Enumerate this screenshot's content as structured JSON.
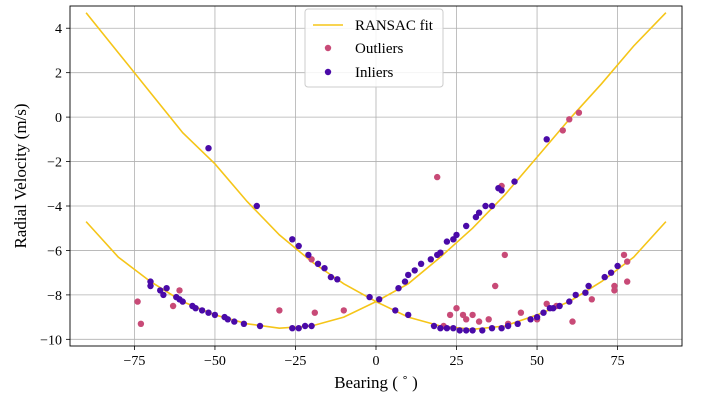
{
  "chart_data": {
    "type": "scatter",
    "xlabel": "Bearing ( ˚ )",
    "ylabel": "Radial Velocity (m/s)",
    "xlim": [
      -95,
      95
    ],
    "ylim": [
      -10.3,
      5.0
    ],
    "xticks": [
      -75,
      -50,
      -25,
      0,
      25,
      50,
      75
    ],
    "yticks": [
      -10,
      -8,
      -6,
      -4,
      -2,
      0,
      2,
      4
    ],
    "grid": true,
    "legend_position": "top-center",
    "legend": [
      "RANSAC fit",
      "Outliers",
      "Inliers"
    ],
    "colors": {
      "fit": "#f5c518",
      "outliers": "#c84a77",
      "inliers": "#4a0aa8",
      "grid": "#b0b0b0"
    },
    "fit_curves": [
      {
        "name": "RANSAC fit",
        "points": [
          [
            -90,
            4.7
          ],
          [
            -80,
            2.9
          ],
          [
            -70,
            1.1
          ],
          [
            -60,
            -0.7
          ],
          [
            -50,
            -2.1
          ],
          [
            -40,
            -3.8
          ],
          [
            -30,
            -5.3
          ],
          [
            -20,
            -6.5
          ],
          [
            -10,
            -7.5
          ],
          [
            0,
            -8.3
          ],
          [
            10,
            -7.5
          ],
          [
            20,
            -6.3
          ],
          [
            30,
            -5.0
          ],
          [
            40,
            -3.5
          ],
          [
            50,
            -1.8
          ],
          [
            60,
            -0.1
          ],
          [
            70,
            1.5
          ],
          [
            80,
            3.2
          ],
          [
            90,
            4.7
          ]
        ]
      },
      {
        "points": [
          [
            -90,
            -4.7
          ],
          [
            -80,
            -6.3
          ],
          [
            -70,
            -7.4
          ],
          [
            -60,
            -8.3
          ],
          [
            -50,
            -8.9
          ],
          [
            -40,
            -9.3
          ],
          [
            -30,
            -9.5
          ],
          [
            -20,
            -9.4
          ],
          [
            -10,
            -9.0
          ],
          [
            0,
            -8.3
          ],
          [
            10,
            -9.0
          ],
          [
            20,
            -9.4
          ],
          [
            30,
            -9.55
          ],
          [
            40,
            -9.4
          ],
          [
            50,
            -8.9
          ],
          [
            60,
            -8.3
          ],
          [
            70,
            -7.4
          ],
          [
            80,
            -6.3
          ],
          [
            90,
            -4.7
          ]
        ]
      }
    ],
    "series": [
      {
        "name": "Outliers",
        "points": [
          [
            -74,
            -8.3
          ],
          [
            -73,
            -9.3
          ],
          [
            -63,
            -8.5
          ],
          [
            -61,
            -7.8
          ],
          [
            -30,
            -8.7
          ],
          [
            -20,
            -6.4
          ],
          [
            -19,
            -8.8
          ],
          [
            -10,
            -8.7
          ],
          [
            19,
            -2.7
          ],
          [
            21,
            -9.4
          ],
          [
            23,
            -8.9
          ],
          [
            25,
            -8.6
          ],
          [
            27,
            -8.9
          ],
          [
            28,
            -9.1
          ],
          [
            30,
            -8.9
          ],
          [
            32,
            -9.2
          ],
          [
            35,
            -9.1
          ],
          [
            37,
            -7.6
          ],
          [
            39,
            -3.1
          ],
          [
            40,
            -6.2
          ],
          [
            41,
            -9.3
          ],
          [
            45,
            -8.8
          ],
          [
            50,
            -9.1
          ],
          [
            53,
            -8.4
          ],
          [
            56,
            -8.5
          ],
          [
            58,
            -0.6
          ],
          [
            60,
            -0.1
          ],
          [
            61,
            -9.2
          ],
          [
            63,
            0.2
          ],
          [
            67,
            -8.2
          ],
          [
            74,
            -7.6
          ],
          [
            74,
            -7.8
          ],
          [
            77,
            -6.2
          ],
          [
            78,
            -7.4
          ],
          [
            78,
            -6.5
          ]
        ]
      },
      {
        "name": "Inliers",
        "points": [
          [
            -70,
            -7.4
          ],
          [
            -70,
            -7.6
          ],
          [
            -67,
            -7.8
          ],
          [
            -66,
            -8.0
          ],
          [
            -65,
            -7.7
          ],
          [
            -62,
            -8.1
          ],
          [
            -61,
            -8.2
          ],
          [
            -60,
            -8.3
          ],
          [
            -57,
            -8.5
          ],
          [
            -56,
            -8.6
          ],
          [
            -54,
            -8.7
          ],
          [
            -52,
            -8.8
          ],
          [
            -50,
            -8.9
          ],
          [
            -47,
            -9.0
          ],
          [
            -46,
            -9.1
          ],
          [
            -44,
            -9.2
          ],
          [
            -41,
            -9.3
          ],
          [
            -36,
            -9.4
          ],
          [
            -26,
            -9.5
          ],
          [
            -24,
            -9.5
          ],
          [
            -22,
            -9.4
          ],
          [
            -20,
            -9.4
          ],
          [
            -52,
            -1.4
          ],
          [
            -37,
            -4.0
          ],
          [
            -26,
            -5.5
          ],
          [
            -24,
            -5.8
          ],
          [
            -21,
            -6.2
          ],
          [
            -18,
            -6.6
          ],
          [
            -16,
            -6.8
          ],
          [
            -14,
            -7.2
          ],
          [
            -12,
            -7.3
          ],
          [
            -2,
            -8.1
          ],
          [
            1,
            -8.2
          ],
          [
            7,
            -7.7
          ],
          [
            9,
            -7.4
          ],
          [
            10,
            -7.1
          ],
          [
            12,
            -6.9
          ],
          [
            14,
            -6.6
          ],
          [
            17,
            -6.4
          ],
          [
            19,
            -6.2
          ],
          [
            20,
            -6.1
          ],
          [
            22,
            -5.6
          ],
          [
            24,
            -5.5
          ],
          [
            25,
            -5.3
          ],
          [
            28,
            -4.9
          ],
          [
            31,
            -4.5
          ],
          [
            32,
            -4.3
          ],
          [
            34,
            -4.0
          ],
          [
            36,
            -4.0
          ],
          [
            38,
            -3.2
          ],
          [
            39,
            -3.3
          ],
          [
            43,
            -2.9
          ],
          [
            53,
            -1.0
          ],
          [
            6,
            -8.7
          ],
          [
            10,
            -8.9
          ],
          [
            18,
            -9.4
          ],
          [
            20,
            -9.5
          ],
          [
            22,
            -9.5
          ],
          [
            24,
            -9.5
          ],
          [
            26,
            -9.6
          ],
          [
            28,
            -9.6
          ],
          [
            30,
            -9.6
          ],
          [
            33,
            -9.6
          ],
          [
            36,
            -9.5
          ],
          [
            39,
            -9.5
          ],
          [
            41,
            -9.4
          ],
          [
            44,
            -9.3
          ],
          [
            48,
            -9.1
          ],
          [
            50,
            -9.0
          ],
          [
            52,
            -8.8
          ],
          [
            54,
            -8.6
          ],
          [
            55,
            -8.6
          ],
          [
            57,
            -8.5
          ],
          [
            60,
            -8.3
          ],
          [
            62,
            -8.0
          ],
          [
            65,
            -7.9
          ],
          [
            66,
            -7.6
          ],
          [
            71,
            -7.2
          ],
          [
            73,
            -7.0
          ],
          [
            75,
            -6.7
          ]
        ]
      }
    ]
  }
}
